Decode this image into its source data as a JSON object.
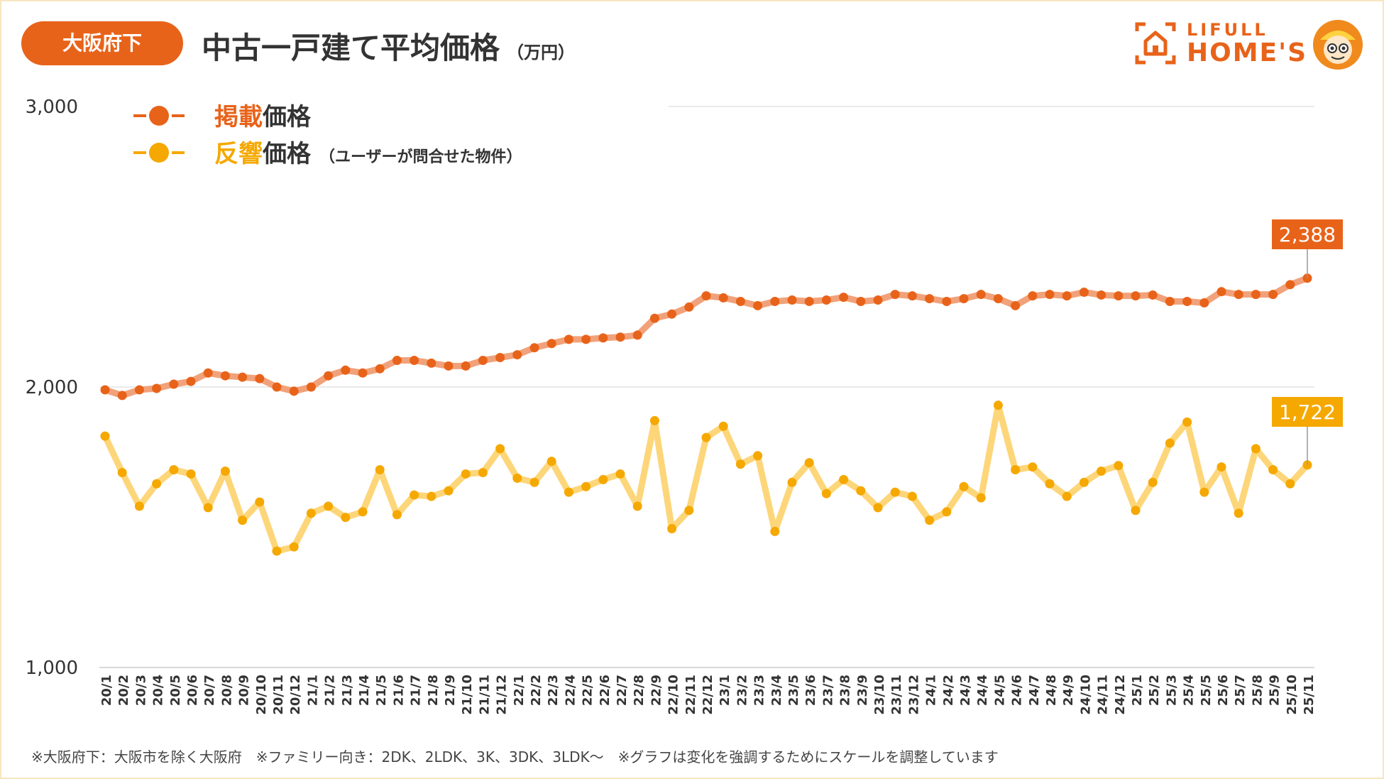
{
  "header": {
    "region_badge": "大阪府下",
    "title": "中古一戸建て平均価格",
    "unit": "（万円）"
  },
  "logo": {
    "line1": "LIFULL",
    "line2": "HOME'S"
  },
  "legend": [
    {
      "marker": "-●-",
      "accent": "掲載",
      "rest": "価格",
      "note": "",
      "color": "#e8631a"
    },
    {
      "marker": "-●-",
      "accent": "反響",
      "rest": "価格",
      "note": "（ユーザーが問合せた物件）",
      "color": "#f5a800"
    }
  ],
  "footnote": "※大阪府下：大阪市を除く大阪府　※ファミリー向き：2DK、2LDK、3K、3DK、3LDK～　※グラフは変化を強調するためにスケールを調整しています",
  "colors": {
    "listing_line": "#f1a27a",
    "listing_dot": "#e8631a",
    "response_line": "#fdd67a",
    "response_dot": "#f5a800",
    "brand": "#e8631a"
  },
  "chart_data": {
    "type": "line",
    "title": "中古一戸建て平均価格",
    "ylabel": "（万円）",
    "ylim": [
      1000,
      3000
    ],
    "yticks": [
      "1,000",
      "2,000",
      "3,000"
    ],
    "ytick_values": [
      1000,
      2000,
      3000
    ],
    "grid": true,
    "legend_position": "top-left",
    "categories": [
      "20/1",
      "20/2",
      "20/3",
      "20/4",
      "20/5",
      "20/6",
      "20/7",
      "20/8",
      "20/9",
      "20/10",
      "20/11",
      "20/12",
      "21/1",
      "21/2",
      "21/3",
      "21/4",
      "21/5",
      "21/6",
      "21/7",
      "21/8",
      "21/9",
      "21/10",
      "21/11",
      "21/12",
      "22/1",
      "22/2",
      "22/3",
      "22/4",
      "22/5",
      "22/6",
      "22/7",
      "22/8",
      "22/9",
      "22/10",
      "22/11",
      "22/12",
      "23/1",
      "23/2",
      "23/3",
      "23/4",
      "23/5",
      "23/6",
      "23/7",
      "23/8",
      "23/9",
      "23/10",
      "23/11",
      "23/12",
      "24/1",
      "24/2",
      "24/3",
      "24/4",
      "24/5",
      "24/6",
      "24/7",
      "24/8",
      "24/9",
      "24/10",
      "24/11",
      "24/12",
      "25/1",
      "25/2",
      "25/3",
      "25/4",
      "25/5",
      "25/6",
      "25/7",
      "25/8",
      "25/9",
      "25/10",
      "25/11"
    ],
    "series": [
      {
        "name": "掲載価格",
        "end_label": "2,388",
        "values": [
          1990,
          1970,
          1990,
          1995,
          2010,
          2020,
          2050,
          2040,
          2035,
          2030,
          2000,
          1985,
          2000,
          2040,
          2060,
          2050,
          2065,
          2095,
          2095,
          2085,
          2075,
          2075,
          2095,
          2105,
          2115,
          2140,
          2155,
          2170,
          2170,
          2175,
          2178,
          2185,
          2245,
          2260,
          2285,
          2325,
          2318,
          2305,
          2290,
          2305,
          2310,
          2305,
          2310,
          2320,
          2305,
          2310,
          2330,
          2325,
          2315,
          2305,
          2315,
          2330,
          2315,
          2290,
          2325,
          2330,
          2325,
          2338,
          2328,
          2325,
          2325,
          2328,
          2305,
          2305,
          2300,
          2340,
          2330,
          2330,
          2330,
          2365,
          2388
        ]
      },
      {
        "name": "反響価格",
        "end_label": "1,722",
        "values": [
          1825,
          1695,
          1575,
          1655,
          1705,
          1690,
          1570,
          1700,
          1525,
          1590,
          1415,
          1430,
          1550,
          1575,
          1535,
          1555,
          1705,
          1545,
          1615,
          1610,
          1630,
          1690,
          1695,
          1780,
          1675,
          1660,
          1735,
          1625,
          1645,
          1670,
          1690,
          1575,
          1880,
          1495,
          1560,
          1820,
          1860,
          1725,
          1755,
          1485,
          1660,
          1730,
          1620,
          1670,
          1630,
          1570,
          1625,
          1610,
          1525,
          1555,
          1645,
          1605,
          1935,
          1705,
          1715,
          1655,
          1610,
          1660,
          1700,
          1720,
          1560,
          1660,
          1800,
          1875,
          1625,
          1715,
          1550,
          1780,
          1705,
          1655,
          1722
        ]
      }
    ]
  }
}
